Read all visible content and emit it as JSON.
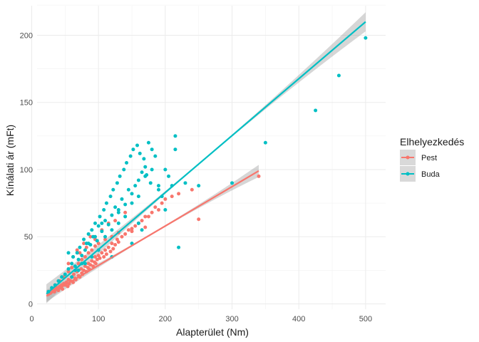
{
  "chart_data": {
    "type": "scatter",
    "xlabel": "Alapterület (Nm)",
    "ylabel": "Kínálati ár (mFt)",
    "xlim": [
      8,
      530
    ],
    "ylim": [
      -4,
      222
    ],
    "x_ticks": [
      0,
      100,
      200,
      300,
      400,
      500
    ],
    "y_ticks": [
      0,
      50,
      100,
      150,
      200
    ],
    "grid": true,
    "legend": {
      "title": "Elhelyezkedés",
      "position": "right"
    },
    "series": [
      {
        "name": "Pest",
        "color": "#F8766D",
        "x": [
          25,
          28,
          30,
          32,
          34,
          36,
          38,
          40,
          42,
          44,
          45,
          46,
          48,
          50,
          52,
          54,
          55,
          56,
          58,
          60,
          62,
          63,
          65,
          66,
          68,
          70,
          72,
          74,
          75,
          76,
          78,
          80,
          82,
          84,
          85,
          86,
          88,
          90,
          92,
          94,
          95,
          96,
          98,
          100,
          102,
          105,
          108,
          110,
          112,
          115,
          118,
          120,
          122,
          125,
          128,
          130,
          135,
          140,
          145,
          150,
          155,
          160,
          165,
          170,
          175,
          180,
          185,
          190,
          195,
          200,
          210,
          220,
          240,
          250,
          340,
          35,
          42,
          48,
          55,
          60,
          65,
          70,
          75,
          80,
          85,
          90,
          95,
          100,
          110,
          120,
          130,
          150,
          160,
          170,
          55,
          62,
          68,
          72,
          78,
          82,
          88,
          95,
          105,
          115,
          125,
          140
        ],
        "y": [
          7,
          8,
          9,
          10,
          9,
          11,
          12,
          10,
          13,
          12,
          14,
          11,
          15,
          14,
          16,
          13,
          18,
          15,
          17,
          20,
          16,
          22,
          19,
          18,
          24,
          21,
          20,
          26,
          23,
          22,
          25,
          28,
          24,
          27,
          30,
          26,
          29,
          32,
          28,
          31,
          35,
          30,
          33,
          36,
          34,
          38,
          35,
          40,
          37,
          42,
          39,
          45,
          41,
          44,
          48,
          46,
          50,
          52,
          55,
          54,
          58,
          60,
          62,
          57,
          65,
          68,
          72,
          70,
          75,
          78,
          80,
          82,
          85,
          63,
          95,
          14,
          17,
          20,
          24,
          27,
          25,
          30,
          33,
          35,
          38,
          40,
          43,
          45,
          48,
          50,
          53,
          56,
          60,
          65,
          30,
          35,
          40,
          38,
          45,
          42,
          50,
          48,
          55,
          60,
          62,
          68
        ]
      },
      {
        "name": "Buda",
        "color": "#00BFC4",
        "x": [
          25,
          30,
          35,
          40,
          45,
          50,
          55,
          60,
          62,
          65,
          68,
          70,
          72,
          75,
          78,
          80,
          82,
          85,
          88,
          90,
          92,
          95,
          98,
          100,
          102,
          105,
          108,
          110,
          112,
          115,
          118,
          120,
          122,
          125,
          128,
          130,
          132,
          135,
          138,
          140,
          142,
          145,
          148,
          150,
          152,
          155,
          158,
          160,
          162,
          165,
          168,
          170,
          172,
          175,
          178,
          180,
          185,
          190,
          195,
          200,
          205,
          210,
          215,
          220,
          230,
          250,
          300,
          350,
          425,
          460,
          500,
          60,
          70,
          80,
          90,
          100,
          110,
          120,
          130,
          140,
          150,
          160,
          170,
          180,
          190,
          200,
          215,
          150,
          160,
          165,
          120,
          130,
          55,
          65,
          75,
          85,
          95,
          105
        ],
        "y": [
          9,
          12,
          14,
          17,
          20,
          22,
          26,
          30,
          35,
          28,
          38,
          33,
          42,
          36,
          48,
          40,
          45,
          52,
          44,
          55,
          50,
          60,
          47,
          58,
          65,
          54,
          70,
          62,
          75,
          59,
          80,
          66,
          85,
          72,
          90,
          68,
          95,
          78,
          100,
          74,
          105,
          85,
          110,
          82,
          115,
          88,
          118,
          92,
          112,
          98,
          108,
          102,
          96,
          120,
          90,
          115,
          110,
          88,
          80,
          100,
          95,
          88,
          125,
          42,
          90,
          88,
          90,
          120,
          144,
          170,
          198,
          20,
          25,
          30,
          35,
          40,
          50,
          55,
          60,
          65,
          75,
          80,
          95,
          100,
          85,
          70,
          115,
          45,
          60,
          55,
          35,
          70,
          38,
          25,
          30,
          45,
          50,
          60
        ]
      }
    ],
    "fits": [
      {
        "name": "Pest",
        "color": "#F8766D",
        "x": [
          22,
          340
        ],
        "y": [
          5.8,
          99
        ]
      },
      {
        "name": "Buda",
        "color": "#00BFC4",
        "x": [
          22,
          500
        ],
        "y": [
          7.5,
          210
        ]
      }
    ]
  }
}
